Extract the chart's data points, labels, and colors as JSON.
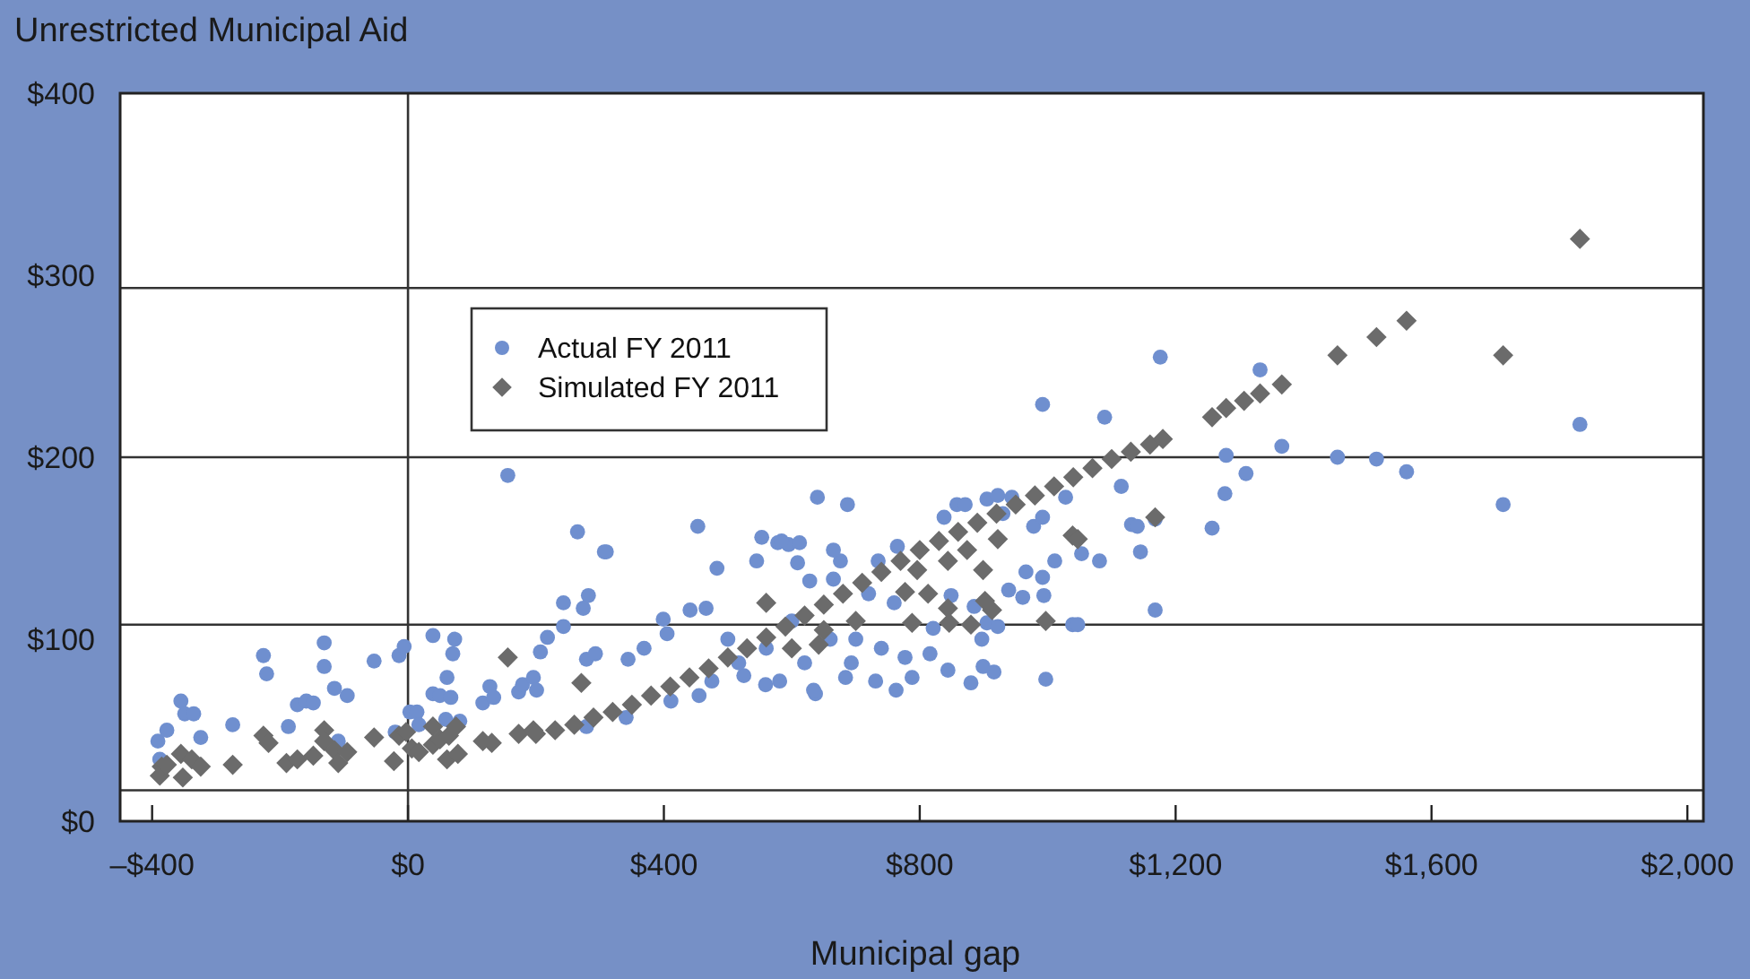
{
  "chart_data": {
    "type": "scatter",
    "title": "Unrestricted Municipal Aid",
    "xlabel": "Municipal gap",
    "xlim": [
      -450,
      2025
    ],
    "ylim": [
      0,
      400
    ],
    "xticks": [
      {
        "value": -400,
        "label": "–$400"
      },
      {
        "value": 0,
        "label": "$0"
      },
      {
        "value": 400,
        "label": "$400"
      },
      {
        "value": 800,
        "label": "$800"
      },
      {
        "value": 1200,
        "label": "$1,200"
      },
      {
        "value": 1600,
        "label": "$1,600"
      },
      {
        "value": 2000,
        "label": "$2,000"
      }
    ],
    "yticks": [
      {
        "value": 0,
        "label": "$0"
      },
      {
        "value": 100,
        "label": "$100"
      },
      {
        "value": 200,
        "label": "$200"
      },
      {
        "value": 300,
        "label": "$300"
      },
      {
        "value": 400,
        "label": "$400"
      }
    ],
    "ref_lines": [
      {
        "axis": "y",
        "value": 17,
        "color": "#333333"
      },
      {
        "axis": "y",
        "value": 108,
        "color": "#333333"
      },
      {
        "axis": "y",
        "value": 200,
        "color": "#333333"
      },
      {
        "axis": "y",
        "value": 293,
        "color": "#333333"
      },
      {
        "axis": "x",
        "value": 0,
        "color": "#333333"
      }
    ],
    "legend": "top left",
    "series": [
      {
        "name": "Actual FY 2011",
        "color": "#6f8fcf",
        "marker": "circle",
        "x": [
          -391,
          -377,
          -388,
          -355,
          -349,
          -335,
          -324,
          -274,
          -226,
          -221,
          -187,
          -173,
          -159,
          -148,
          -131,
          -131,
          -115,
          -109,
          -95,
          -53,
          -14,
          -6,
          -20,
          3,
          14,
          17,
          39,
          39,
          61,
          50,
          67,
          70,
          73,
          59,
          81,
          117,
          128,
          134,
          156,
          173,
          179,
          196,
          201,
          207,
          218,
          243,
          243,
          282,
          274,
          310,
          279,
          293,
          344,
          369,
          399,
          405,
          441,
          466,
          483,
          455,
          411,
          341,
          279,
          545,
          553,
          578,
          595,
          609,
          628,
          525,
          559,
          581,
          620,
          637,
          665,
          676,
          693,
          731,
          735,
          475,
          517,
          453,
          687,
          640,
          307,
          265,
          665,
          584,
          612,
          765,
          858,
          905,
          930,
          992,
          1089,
          1176,
          1115,
          1131,
          1140,
          1145,
          1168,
          1168,
          1028,
          1011,
          1053,
          1081,
          1039,
          1047,
          997,
          966,
          992,
          994,
          961,
          939,
          922,
          944,
          871,
          838,
          978,
          992,
          1279,
          1277,
          1257,
          1310,
          1332,
          1366,
          1453,
          1514,
          1561,
          1712,
          1832,
          849,
          885,
          905,
          922,
          897,
          880,
          916,
          844,
          788,
          816,
          777,
          899,
          821,
          763,
          684,
          634,
          700,
          740,
          760,
          560,
          600,
          660,
          720,
          500
        ],
        "values": [
          44,
          50,
          34,
          66,
          59,
          59,
          46,
          53,
          91,
          81,
          52,
          64,
          66,
          65,
          98,
          85,
          73,
          44,
          69,
          88,
          91,
          96,
          49,
          60,
          60,
          53,
          102,
          70,
          79,
          69,
          68,
          92,
          100,
          56,
          55,
          65,
          74,
          68,
          190,
          71,
          75,
          79,
          72,
          93,
          101,
          107,
          120,
          124,
          117,
          148,
          89,
          92,
          89,
          95,
          111,
          103,
          116,
          117,
          139,
          69,
          66,
          57,
          52,
          143,
          156,
          153,
          152,
          142,
          132,
          80,
          75,
          77,
          87,
          70,
          133,
          143,
          87,
          77,
          143,
          77,
          87,
          162,
          174,
          178,
          148,
          159,
          149,
          154,
          153,
          151,
          174,
          177,
          169,
          229,
          222,
          255,
          184,
          163,
          162,
          148,
          166,
          116,
          178,
          143,
          147,
          143,
          108,
          108,
          78,
          137,
          134,
          124,
          123,
          127,
          179,
          178,
          174,
          167,
          162,
          167,
          201,
          180,
          161,
          191,
          248,
          206,
          200,
          199,
          192,
          174,
          218,
          124,
          118,
          109,
          107,
          100,
          76,
          82,
          83,
          79,
          92,
          90,
          85,
          106,
          72,
          79,
          72,
          100,
          95,
          120,
          95,
          110,
          100,
          125,
          100
        ]
      },
      {
        "name": "Simulated FY 2011",
        "color": "#6b6b6b",
        "marker": "diamond",
        "x": [
          -388,
          -385,
          -377,
          -352,
          -355,
          -338,
          -324,
          -274,
          -226,
          -218,
          -190,
          -173,
          -148,
          -131,
          -131,
          -115,
          -109,
          -95,
          -53,
          -22,
          -14,
          -3,
          6,
          17,
          39,
          39,
          50,
          61,
          64,
          75,
          78,
          117,
          131,
          156,
          173,
          196,
          200,
          230,
          260,
          290,
          320,
          350,
          380,
          410,
          440,
          470,
          500,
          530,
          560,
          590,
          620,
          650,
          680,
          710,
          740,
          770,
          800,
          830,
          860,
          890,
          920,
          950,
          980,
          1010,
          1040,
          1070,
          1100,
          1130,
          1160,
          1180,
          1257,
          1279,
          1307,
          1332,
          1366,
          1453,
          1514,
          1561,
          1712,
          1832,
          1168,
          1039,
          1047,
          922,
          899,
          902,
          913,
          874,
          844,
          813,
          844,
          846,
          880,
          997,
          788,
          777,
          796,
          271,
          642,
          650,
          700,
          600,
          560
        ],
        "values": [
          25,
          30,
          31,
          24,
          37,
          34,
          30,
          31,
          47,
          43,
          32,
          34,
          36,
          50,
          44,
          39,
          32,
          38,
          46,
          33,
          47,
          49,
          40,
          38,
          52,
          42,
          45,
          34,
          47,
          52,
          37,
          44,
          43,
          90,
          48,
          50,
          48,
          50,
          53,
          57,
          60,
          64,
          69,
          74,
          79,
          84,
          90,
          95,
          101,
          107,
          113,
          119,
          125,
          131,
          137,
          143,
          149,
          154,
          159,
          164,
          169,
          174,
          179,
          184,
          189,
          194,
          199,
          203,
          207,
          210,
          222,
          227,
          231,
          235,
          240,
          256,
          266,
          275,
          256,
          320,
          167,
          157,
          155,
          155,
          138,
          121,
          116,
          149,
          143,
          125,
          117,
          109,
          108,
          110,
          109,
          126,
          138,
          76,
          97,
          105,
          110,
          95,
          120
        ]
      }
    ]
  }
}
